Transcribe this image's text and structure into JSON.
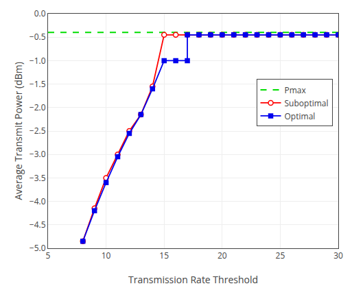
{
  "chart_data": {
    "type": "line",
    "xlabel": "Transmission Rate Threshold",
    "ylabel": "Average Transmit Power (dBm)",
    "series": [
      {
        "name": "Pmax",
        "type": "hline",
        "color": "#00dd00",
        "line_style": "dashed",
        "values": [
          -0.4
        ]
      },
      {
        "name": "Suboptimal",
        "color": "#ff0000",
        "marker": "circle-open",
        "line_style": "solid",
        "x": [
          8,
          9,
          10,
          11,
          12,
          13,
          14,
          15,
          16,
          17,
          18,
          19,
          20,
          21,
          22,
          23,
          24,
          25,
          26,
          27,
          28,
          29,
          30
        ],
        "values": [
          -4.85,
          -4.15,
          -3.5,
          -3.0,
          -2.5,
          -2.15,
          -1.55,
          -0.45,
          -0.45,
          -0.45,
          -0.45,
          -0.45,
          -0.45,
          -0.45,
          -0.45,
          -0.45,
          -0.45,
          -0.45,
          -0.45,
          -0.45,
          -0.45,
          -0.45,
          -0.45
        ]
      },
      {
        "name": "Optimal",
        "color": "#0000ee",
        "marker": "square",
        "line_style": "solid",
        "x": [
          8,
          9,
          10,
          11,
          12,
          13,
          14,
          15,
          16,
          17,
          17,
          18,
          19,
          20,
          21,
          22,
          23,
          24,
          25,
          26,
          27,
          28,
          29,
          30
        ],
        "values": [
          -4.85,
          -4.2,
          -3.6,
          -3.05,
          -2.55,
          -2.15,
          -1.6,
          -1.0,
          -1.0,
          -1.0,
          -0.45,
          -0.45,
          -0.45,
          -0.45,
          -0.45,
          -0.45,
          -0.45,
          -0.45,
          -0.45,
          -0.45,
          -0.45,
          -0.45,
          -0.45,
          -0.45
        ]
      }
    ],
    "xlim": [
      5,
      30
    ],
    "ylim": [
      -5,
      0
    ],
    "xticks": [
      5,
      10,
      15,
      20,
      25,
      30
    ],
    "yticks": [
      {
        "value": 0,
        "label": "0.0"
      },
      {
        "value": -0.5,
        "label": "−0.5"
      },
      {
        "value": -1,
        "label": "−1.0"
      },
      {
        "value": -1.5,
        "label": "−1.5"
      },
      {
        "value": -2,
        "label": "−2.0"
      },
      {
        "value": -2.5,
        "label": "−2.5"
      },
      {
        "value": -3,
        "label": "−3.0"
      },
      {
        "value": -3.5,
        "label": "−3.5"
      },
      {
        "value": -4,
        "label": "−4.0"
      },
      {
        "value": -4.5,
        "label": "−4.5"
      },
      {
        "value": -5,
        "label": "−5.0"
      }
    ],
    "grid": true,
    "legend": "right"
  }
}
